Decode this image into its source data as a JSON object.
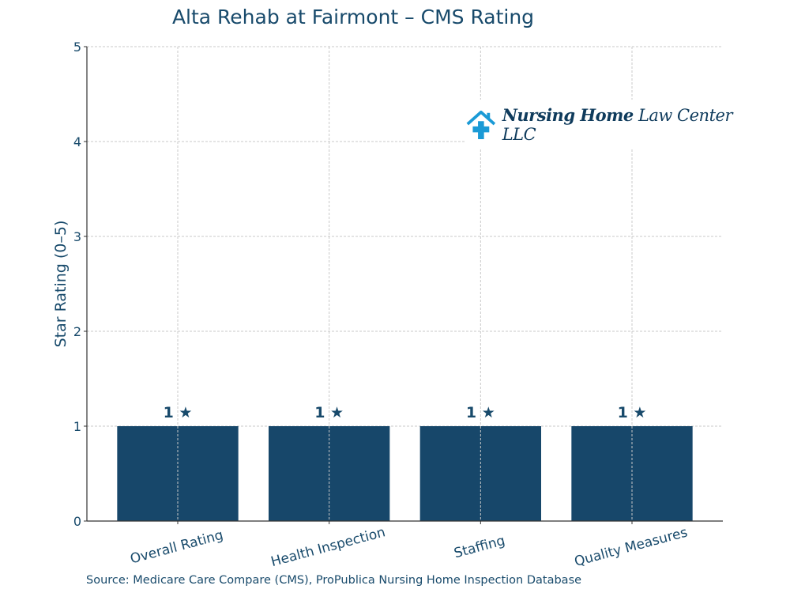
{
  "chart_data": {
    "type": "bar",
    "title": "Alta Rehab at Fairmont – CMS Rating",
    "xlabel": "",
    "ylabel": "Star Rating (0–5)",
    "categories": [
      "Overall Rating",
      "Health Inspection",
      "Staffing",
      "Quality Measures"
    ],
    "values": [
      1,
      1,
      1,
      1
    ],
    "data_labels": [
      "1 ★",
      "1 ★",
      "1 ★",
      "1 ★"
    ],
    "ylim": [
      0,
      5
    ],
    "yticks": [
      0,
      1,
      2,
      3,
      4,
      5
    ],
    "grid": true,
    "bar_color": "#17476a",
    "source": "Source: Medicare Care Compare (CMS), ProPublica Nursing Home Inspection Database"
  },
  "logo": {
    "text_bold": "Nursing Home",
    "text_regular": "Law Center LLC",
    "icon": "house-cross-icon",
    "color": "#1a9ad6"
  }
}
